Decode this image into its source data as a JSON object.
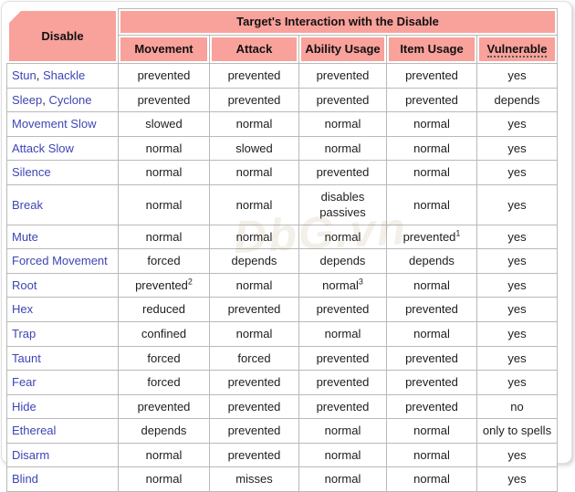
{
  "table": {
    "corner_header": "Disable",
    "group_header": "Target's Interaction with the Disable",
    "columns": [
      "Movement",
      "Attack",
      "Ability Usage",
      "Item Usage",
      "Vulnerable"
    ],
    "rows": [
      {
        "links": [
          "Stun",
          "Shackle"
        ],
        "cells": [
          {
            "t": "prevented"
          },
          {
            "t": "prevented"
          },
          {
            "t": "prevented"
          },
          {
            "t": "prevented"
          },
          {
            "t": "yes"
          }
        ]
      },
      {
        "links": [
          "Sleep",
          "Cyclone"
        ],
        "cells": [
          {
            "t": "prevented"
          },
          {
            "t": "prevented"
          },
          {
            "t": "prevented"
          },
          {
            "t": "prevented"
          },
          {
            "t": "depends"
          }
        ]
      },
      {
        "links": [
          "Movement Slow"
        ],
        "cells": [
          {
            "t": "slowed"
          },
          {
            "t": "normal"
          },
          {
            "t": "normal"
          },
          {
            "t": "normal"
          },
          {
            "t": "yes"
          }
        ]
      },
      {
        "links": [
          "Attack Slow"
        ],
        "cells": [
          {
            "t": "normal"
          },
          {
            "t": "slowed"
          },
          {
            "t": "normal"
          },
          {
            "t": "normal"
          },
          {
            "t": "yes"
          }
        ]
      },
      {
        "links": [
          "Silence"
        ],
        "cells": [
          {
            "t": "normal"
          },
          {
            "t": "normal"
          },
          {
            "t": "prevented"
          },
          {
            "t": "normal"
          },
          {
            "t": "yes"
          }
        ]
      },
      {
        "links": [
          "Break"
        ],
        "cells": [
          {
            "t": "normal"
          },
          {
            "t": "normal"
          },
          {
            "t": "disables passives"
          },
          {
            "t": "normal"
          },
          {
            "t": "yes"
          }
        ]
      },
      {
        "links": [
          "Mute"
        ],
        "cells": [
          {
            "t": "normal"
          },
          {
            "t": "normal"
          },
          {
            "t": "normal"
          },
          {
            "t": "prevented",
            "sup": "1"
          },
          {
            "t": "yes"
          }
        ]
      },
      {
        "links": [
          "Forced Movement"
        ],
        "cells": [
          {
            "t": "forced"
          },
          {
            "t": "depends"
          },
          {
            "t": "depends"
          },
          {
            "t": "depends"
          },
          {
            "t": "yes"
          }
        ]
      },
      {
        "links": [
          "Root"
        ],
        "cells": [
          {
            "t": "prevented",
            "sup": "2"
          },
          {
            "t": "normal"
          },
          {
            "t": "normal",
            "sup": "3"
          },
          {
            "t": "normal"
          },
          {
            "t": "yes"
          }
        ]
      },
      {
        "links": [
          "Hex"
        ],
        "cells": [
          {
            "t": "reduced"
          },
          {
            "t": "prevented"
          },
          {
            "t": "prevented"
          },
          {
            "t": "prevented"
          },
          {
            "t": "yes"
          }
        ]
      },
      {
        "links": [
          "Trap"
        ],
        "cells": [
          {
            "t": "confined"
          },
          {
            "t": "normal"
          },
          {
            "t": "normal"
          },
          {
            "t": "normal"
          },
          {
            "t": "yes"
          }
        ]
      },
      {
        "links": [
          "Taunt"
        ],
        "cells": [
          {
            "t": "forced"
          },
          {
            "t": "forced"
          },
          {
            "t": "prevented"
          },
          {
            "t": "prevented"
          },
          {
            "t": "yes"
          }
        ]
      },
      {
        "links": [
          "Fear"
        ],
        "cells": [
          {
            "t": "forced"
          },
          {
            "t": "prevented"
          },
          {
            "t": "prevented"
          },
          {
            "t": "prevented"
          },
          {
            "t": "yes"
          }
        ]
      },
      {
        "links": [
          "Hide"
        ],
        "cells": [
          {
            "t": "prevented"
          },
          {
            "t": "prevented"
          },
          {
            "t": "prevented"
          },
          {
            "t": "prevented"
          },
          {
            "t": "no"
          }
        ]
      },
      {
        "links": [
          "Ethereal"
        ],
        "cells": [
          {
            "t": "depends"
          },
          {
            "t": "prevented"
          },
          {
            "t": "normal"
          },
          {
            "t": "normal"
          },
          {
            "t": "only to spells"
          }
        ]
      },
      {
        "links": [
          "Disarm"
        ],
        "cells": [
          {
            "t": "normal"
          },
          {
            "t": "prevented"
          },
          {
            "t": "normal"
          },
          {
            "t": "normal"
          },
          {
            "t": "yes"
          }
        ]
      },
      {
        "links": [
          "Blind"
        ],
        "cells": [
          {
            "t": "normal"
          },
          {
            "t": "misses"
          },
          {
            "t": "normal"
          },
          {
            "t": "normal"
          },
          {
            "t": "yes"
          }
        ]
      }
    ]
  },
  "watermark": {
    "text": "DbG.vn"
  },
  "colors": {
    "header_bg": "#f9a19b",
    "link": "#3d45b4",
    "grid_line": "#b9b9b9",
    "cell_bg": "#ffffff",
    "text": "#1d1d1d"
  }
}
